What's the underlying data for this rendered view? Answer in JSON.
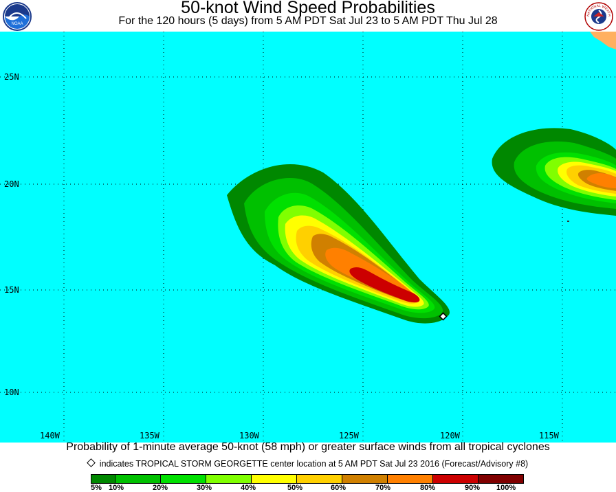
{
  "header": {
    "title": "50-knot Wind Speed Probabilities",
    "subtitle": "For the 120 hours (5 days) from 5 AM PDT Sat Jul 23 to 5 AM PDT Thu Jul 28",
    "left_logo_text": "NOAA",
    "right_logo_text": "NATIONAL WEATHER SERVICE"
  },
  "map": {
    "background_color": "#00ffff",
    "land_color": "#ffb060",
    "grid": true,
    "lat_labels": [
      "25N",
      "20N",
      "15N",
      "10N"
    ],
    "lon_labels": [
      "140W",
      "135W",
      "130W",
      "125W",
      "120W",
      "115W"
    ],
    "storm": {
      "name": "TROPICAL STORM GEORGETTE",
      "center": {
        "lat": 13.7,
        "lon": -120.6
      }
    }
  },
  "caption": "Probability of 1-minute average 50-knot (58 mph) or greater surface winds from all tropical cyclones",
  "marker_note": "indicates TROPICAL STORM GEORGETTE center location at 5 AM PDT Sat Jul 23 2016 (Forecast/Advisory #8)",
  "legend": {
    "colors": [
      "#008800",
      "#00c000",
      "#00e000",
      "#80ff00",
      "#ffff00",
      "#ffd000",
      "#d08000",
      "#ff8000",
      "#cc0000",
      "#800000",
      "#880088"
    ],
    "ticks": [
      "5%",
      "10%",
      "20%",
      "30%",
      "40%",
      "50%",
      "60%",
      "70%",
      "80%",
      "90%",
      "100%"
    ]
  }
}
